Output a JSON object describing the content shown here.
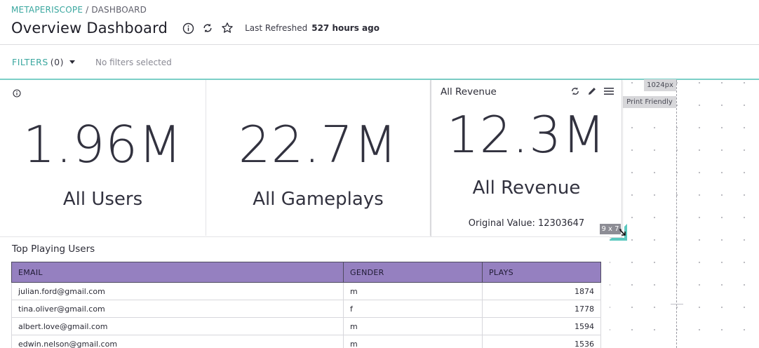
{
  "header": {
    "breadcrumb_app": "METAPERISCOPE",
    "breadcrumb_sep": " / ",
    "breadcrumb_page": "DASHBOARD",
    "title": "Overview Dashboard",
    "last_refreshed_label": "Last Refreshed",
    "last_refreshed_value": "527 hours ago",
    "icons": [
      "info-icon",
      "refresh-icon",
      "star-icon"
    ]
  },
  "filters": {
    "label": "FILTERS",
    "count": "(0)",
    "status": "No filters selected"
  },
  "canvas": {
    "width_tag": "1024px",
    "print_friendly": "Print Friendly",
    "resize_badge": "9 x 7"
  },
  "tiles": {
    "users": {
      "value": "1.96M",
      "label": "All Users"
    },
    "gameplays": {
      "value": "22.7M",
      "label": "All Gameplays"
    },
    "revenue": {
      "title": "All Revenue",
      "value": "12.3M",
      "label": "All Revenue",
      "original_value": "Original Value: 12303647",
      "tools": [
        "refresh-icon",
        "edit-icon",
        "menu-icon"
      ]
    }
  },
  "table": {
    "title": "Top Playing Users",
    "columns": [
      "EMAIL",
      "GENDER",
      "PLAYS"
    ],
    "rows": [
      [
        "julian.ford@gmail.com",
        "m",
        "1874"
      ],
      [
        "tina.oliver@gmail.com",
        "f",
        "1778"
      ],
      [
        "albert.love@gmail.com",
        "m",
        "1594"
      ],
      [
        "edwin.nelson@gmail.com",
        "m",
        "1536"
      ]
    ]
  },
  "colors": {
    "accent": "#3aa79f",
    "table_header": "#9580c0",
    "filter_line": "#7ccfc7"
  }
}
